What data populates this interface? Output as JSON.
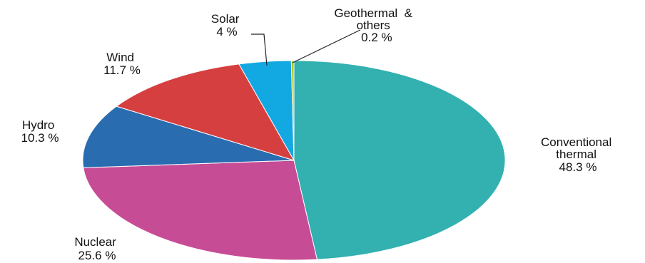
{
  "chart_data": {
    "type": "pie",
    "start": "12 o'clock",
    "direction": "clockwise",
    "slices": [
      {
        "label": [
          "Conventional",
          "thermal"
        ],
        "value_text": "48.3 %",
        "value": 48.3,
        "color": "#33b0b0"
      },
      {
        "label": [
          "Nuclear"
        ],
        "value_text": "25.6 %",
        "value": 25.6,
        "color": "#c74c96"
      },
      {
        "label": [
          "Hydro"
        ],
        "value_text": "10.3 %",
        "value": 10.3,
        "color": "#2a6cb0"
      },
      {
        "label": [
          "Wind"
        ],
        "value_text": "11.7 %",
        "value": 11.7,
        "color": "#d63f3f"
      },
      {
        "label": [
          "Solar"
        ],
        "value_text": "4 %",
        "value": 4,
        "color": "#12a8e2"
      },
      {
        "label": [
          "Geothermal  &",
          "others"
        ],
        "value_text": "0.2 %",
        "value": 0.2,
        "color": "#b5c21a"
      }
    ]
  }
}
